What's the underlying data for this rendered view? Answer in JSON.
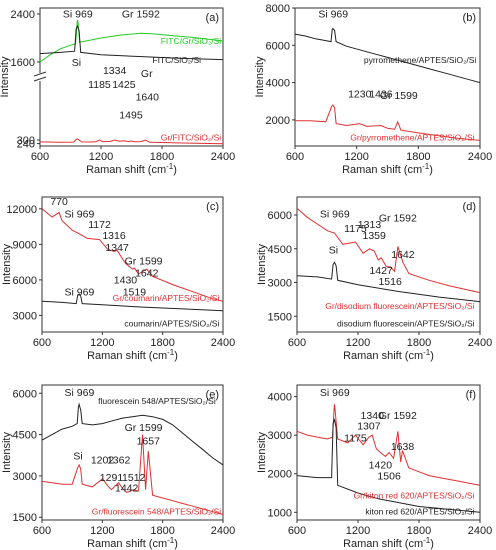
{
  "chart_data": [
    {
      "id": "a",
      "panel_label": "(a)",
      "type": "line",
      "xlabel": "Raman shift (cm⁻¹)",
      "ylabel": "Intensity",
      "xlim": [
        600,
        2400
      ],
      "ylim": [
        200,
        2500
      ],
      "xticks": [
        600,
        1200,
        1800,
        2400
      ],
      "yticks": [
        240,
        300,
        1600,
        2400
      ],
      "axis_break": true,
      "series": [
        {
          "name": "FITC/Gr/SiO2/Si",
          "color": "#22cc22",
          "x": [
            600,
            700,
            800,
            900,
            950,
            965,
            969,
            975,
            990,
            1050,
            1200,
            1400,
            1592,
            1700,
            1900,
            2100,
            2300,
            2400
          ],
          "y": [
            1600,
            1720,
            1820,
            1880,
            1900,
            2250,
            2300,
            2250,
            1930,
            1950,
            2000,
            2050,
            2080,
            2070,
            2040,
            2010,
            1970,
            1950
          ]
        },
        {
          "name": "FITC/SiO2/Si",
          "color": "#222222",
          "x": [
            600,
            800,
            940,
            955,
            969,
            985,
            1000,
            1200,
            1600,
            2000,
            2400
          ],
          "y": [
            1740,
            1760,
            1780,
            2150,
            2200,
            2120,
            1760,
            1720,
            1690,
            1660,
            1640
          ]
        },
        {
          "name": "Gr/FITC/SiO2/Si",
          "color": "#e03030",
          "x": [
            600,
            800,
            930,
            955,
            969,
            985,
            1010,
            1100,
            1150,
            1185,
            1220,
            1290,
            1334,
            1380,
            1425,
            1470,
            1495,
            1530,
            1592,
            1640,
            1680,
            1800,
            2000,
            2200,
            2400
          ],
          "y": [
            268,
            262,
            265,
            305,
            320,
            300,
            268,
            266,
            272,
            298,
            272,
            276,
            300,
            280,
            288,
            274,
            284,
            270,
            274,
            296,
            262,
            258,
            250,
            244,
            238
          ]
        }
      ],
      "annotations": [
        "Si 969",
        "Gr 1592",
        "Si",
        "1334",
        "1185",
        "1425",
        "Gr",
        "1640",
        "1495"
      ],
      "legend_labels": [
        "FITC/Gr/SiO₂/Si",
        "FITC/SiO₂/Si",
        "Gr/FITC/SiO₂/Si"
      ]
    },
    {
      "id": "b",
      "panel_label": "(b)",
      "type": "line",
      "xlabel": "Raman shift (cm⁻¹)",
      "ylabel": "Intensity",
      "xlim": [
        600,
        2400
      ],
      "ylim": [
        600,
        8000
      ],
      "xticks": [
        600,
        1200,
        1800,
        2400
      ],
      "yticks": [
        2000,
        4000,
        6000,
        8000
      ],
      "series": [
        {
          "name": "pyrromethene/APTES/SiO2/Si",
          "color": "#222222",
          "x": [
            600,
            700,
            800,
            900,
            950,
            962,
            969,
            985,
            1000,
            1100,
            1300,
            1500,
            1700,
            1900,
            2100,
            2300,
            2400
          ],
          "y": [
            6600,
            6500,
            6350,
            6250,
            6200,
            6850,
            6900,
            6800,
            6200,
            5950,
            5650,
            5350,
            5050,
            4750,
            4450,
            4150,
            4000
          ]
        },
        {
          "name": "Gr/pyrromethene/APTES/SiO2/Si",
          "color": "#e03030",
          "x": [
            600,
            750,
            900,
            955,
            969,
            985,
            1000,
            1100,
            1230,
            1300,
            1436,
            1500,
            1570,
            1599,
            1630,
            1800,
            2000,
            2200,
            2400
          ],
          "y": [
            1950,
            1950,
            1900,
            2700,
            2800,
            2650,
            1800,
            1700,
            1800,
            1650,
            1700,
            1550,
            1500,
            1900,
            1450,
            1300,
            1150,
            1000,
            900
          ]
        }
      ],
      "annotations": [
        "Si 969",
        "1230",
        "1436",
        "Gr 1599"
      ],
      "legend_labels": [
        "pyrromethene/APTES/SiO₂/Si",
        "Gr/pyrromethene/APTES/SiO₂/Si"
      ]
    },
    {
      "id": "c",
      "panel_label": "(c)",
      "type": "line",
      "xlabel": "Raman shift (cm⁻¹)",
      "ylabel": "Intensity",
      "xlim": [
        600,
        2400
      ],
      "ylim": [
        1600,
        13000
      ],
      "xticks": [
        600,
        1200,
        1800,
        2400
      ],
      "yticks": [
        3000,
        6000,
        9000,
        12000
      ],
      "series": [
        {
          "name": "Gr/coumarin/APTES/SiO2/Si",
          "color": "#e03030",
          "x": [
            600,
            700,
            770,
            800,
            900,
            969,
            1050,
            1172,
            1250,
            1316,
            1347,
            1400,
            1430,
            1500,
            1519,
            1560,
            1599,
            1642,
            1700,
            1900,
            2100,
            2300,
            2400
          ],
          "y": [
            12000,
            11300,
            11700,
            11000,
            10200,
            9900,
            9500,
            9400,
            8600,
            8400,
            8500,
            7800,
            7400,
            6900,
            7000,
            6500,
            6700,
            6900,
            6300,
            5600,
            5000,
            4400,
            4200
          ]
        },
        {
          "name": "coumarin/APTES/SiO2/Si",
          "color": "#222222",
          "x": [
            600,
            800,
            940,
            955,
            969,
            985,
            1000,
            1200,
            1600,
            2000,
            2400
          ],
          "y": [
            4200,
            4100,
            4000,
            4700,
            4800,
            4650,
            4000,
            3900,
            3700,
            3550,
            3400
          ]
        }
      ],
      "annotations": [
        "770",
        "Si 969",
        "1172",
        "1316",
        "1347",
        "Gr 1599",
        "1642",
        "1430",
        "1519",
        "Si 969"
      ],
      "legend_labels": [
        "Gr/coumarin/APTES/SiO₂/Si",
        "coumarin/APTES/SiO₂/Si"
      ]
    },
    {
      "id": "d",
      "panel_label": "(d)",
      "type": "line",
      "xlabel": "Raman shift (cm⁻¹)",
      "ylabel": "Intensity",
      "xlim": [
        600,
        2400
      ],
      "ylim": [
        800,
        6800
      ],
      "xticks": [
        600,
        1200,
        1800,
        2400
      ],
      "yticks": [
        1500,
        3000,
        4500,
        6000
      ],
      "series": [
        {
          "name": "Gr/disodium fluorescein/APTES/SiO2/Si",
          "color": "#e03030",
          "x": [
            600,
            700,
            800,
            900,
            969,
            1050,
            1175,
            1250,
            1313,
            1359,
            1400,
            1427,
            1480,
            1516,
            1560,
            1592,
            1642,
            1700,
            1900,
            2100,
            2300,
            2400
          ],
          "y": [
            6300,
            5900,
            5600,
            5300,
            5200,
            4700,
            4800,
            4300,
            4500,
            4400,
            4000,
            4100,
            3700,
            3700,
            3500,
            4600,
            3900,
            3400,
            3100,
            2850,
            2650,
            2550
          ]
        },
        {
          "name": "disodium fluorescein/APTES/SiO2/Si",
          "color": "#222222",
          "x": [
            600,
            800,
            940,
            955,
            969,
            985,
            1000,
            1200,
            1600,
            2000,
            2400
          ],
          "y": [
            3300,
            3250,
            3150,
            3800,
            3900,
            3750,
            3100,
            2900,
            2600,
            2350,
            2150
          ]
        }
      ],
      "annotations": [
        "Si 969",
        "1175",
        "1313",
        "1359",
        "Gr 1592",
        "1642",
        "Si",
        "1427",
        "1516"
      ],
      "legend_labels": [
        "Gr/disodium fluorescein/APTES/SiO₂/Si",
        "disodium fluorescein/APTES/SiO₂/Si"
      ]
    },
    {
      "id": "e",
      "panel_label": "(e)",
      "type": "line",
      "xlabel": "Raman shift (cm⁻¹)",
      "ylabel": "Intensity",
      "xlim": [
        600,
        2400
      ],
      "ylim": [
        1400,
        6300
      ],
      "xticks": [
        600,
        1200,
        1800,
        2400
      ],
      "yticks": [
        1500,
        3000,
        4500,
        6000
      ],
      "series": [
        {
          "name": "fluorescein 548/APTES/SiO2/Si",
          "color": "#222222",
          "x": [
            600,
            700,
            800,
            900,
            950,
            962,
            969,
            985,
            1000,
            1100,
            1200,
            1300,
            1400,
            1500,
            1600,
            1700,
            1800,
            1900,
            2000,
            2100,
            2200,
            2300,
            2400
          ],
          "y": [
            4300,
            4500,
            4700,
            4800,
            4900,
            5500,
            5600,
            5400,
            4900,
            4850,
            4900,
            5000,
            5100,
            5150,
            5200,
            5150,
            5050,
            4850,
            4550,
            4250,
            3950,
            3650,
            3400
          ]
        },
        {
          "name": "Gr/fluorescein 548/APTES/SiO2/Si",
          "color": "#e03030",
          "x": [
            600,
            700,
            800,
            900,
            955,
            969,
            985,
            1000,
            1100,
            1202,
            1250,
            1291,
            1330,
            1362,
            1400,
            1442,
            1480,
            1512,
            1560,
            1599,
            1630,
            1657,
            1700,
            1800,
            1900,
            2000,
            2100,
            2200,
            2300,
            2400
          ],
          "y": [
            2800,
            2750,
            2700,
            2700,
            3300,
            3400,
            3250,
            2700,
            2600,
            2900,
            2650,
            2500,
            2650,
            2750,
            2550,
            2400,
            2450,
            2500,
            2450,
            4500,
            2500,
            3900,
            2300,
            2200,
            2100,
            2000,
            1900,
            1800,
            1700,
            1600
          ]
        }
      ],
      "annotations": [
        "Si 969",
        "Gr 1599",
        "1657",
        "Si",
        "1202",
        "1362",
        "1291",
        "1512",
        "1442"
      ],
      "legend_labels": [
        "fluorescein 548/APTES/SiO₂/Si",
        "Gr/fluorescein 548/APTES/SiO₂/Si"
      ]
    },
    {
      "id": "f",
      "panel_label": "(f)",
      "type": "line",
      "xlabel": "Raman shift (cm⁻¹)",
      "ylabel": "Intensity",
      "xlim": [
        600,
        2400
      ],
      "ylim": [
        800,
        4300
      ],
      "xticks": [
        600,
        1200,
        1800,
        2400
      ],
      "yticks": [
        1000,
        2000,
        3000,
        4000
      ],
      "series": [
        {
          "name": "Gr/kiton red 620/APTES/SiO2/Si",
          "color": "#e03030",
          "x": [
            600,
            700,
            800,
            900,
            950,
            965,
            969,
            975,
            1000,
            1100,
            1175,
            1250,
            1307,
            1340,
            1380,
            1420,
            1470,
            1506,
            1550,
            1592,
            1620,
            1638,
            1700,
            1800,
            1900,
            2000,
            2100,
            2200,
            2300,
            2400
          ],
          "y": [
            3100,
            3000,
            2950,
            2900,
            2950,
            3700,
            3800,
            3650,
            2900,
            2800,
            3000,
            2750,
            2950,
            3000,
            2650,
            2550,
            2450,
            2550,
            2400,
            3100,
            2300,
            2600,
            2150,
            2050,
            1950,
            1900,
            1850,
            1800,
            1750,
            1700
          ]
        },
        {
          "name": "kiton red 620/APTES/SiO2/Si",
          "color": "#222222",
          "x": [
            600,
            800,
            940,
            955,
            969,
            985,
            1000,
            1200,
            1400,
            1600,
            1800,
            2000,
            2200,
            2400
          ],
          "y": [
            1950,
            1900,
            1900,
            3300,
            3400,
            3200,
            1700,
            1500,
            1350,
            1250,
            1150,
            1100,
            1050,
            1000
          ]
        }
      ],
      "annotations": [
        "Si 969",
        "1340",
        "1307",
        "1175",
        "Gr 1592",
        "1638",
        "1420",
        "1506"
      ],
      "legend_labels": [
        "Gr/kiton red 620/APTES/SiO₂/Si",
        "kiton red 620/APTES/SiO₂/Si"
      ]
    }
  ]
}
